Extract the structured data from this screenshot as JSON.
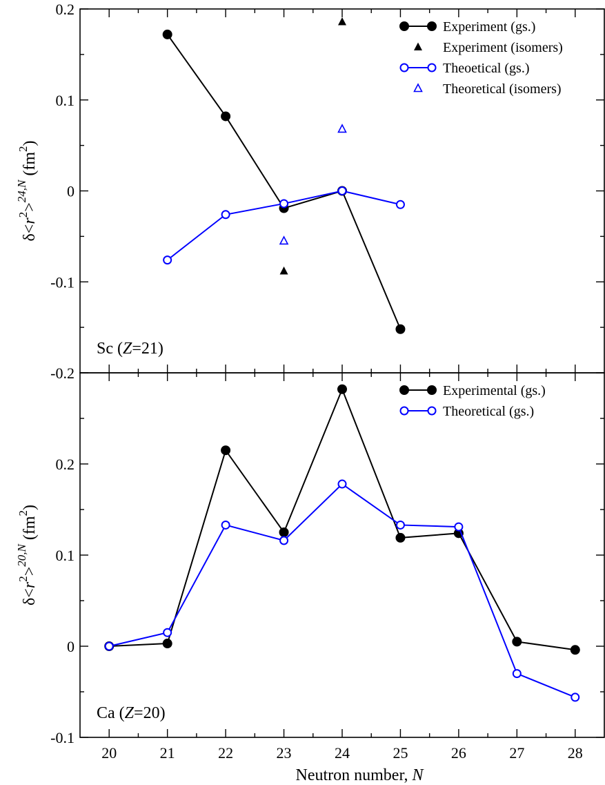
{
  "chart_data": [
    {
      "type": "line",
      "panel": "top",
      "annotation": {
        "element": "Sc",
        "zlabel": "Z",
        "zvalue": "=21"
      },
      "ylabel": {
        "delta": "δ",
        "lt": "<",
        "r": "r",
        "exp": "2",
        "gt": ">",
        "sup": "24,N",
        "unit": "(fm",
        "unitexp": "2",
        "close": ")"
      },
      "ylim": [
        -0.2,
        0.2
      ],
      "yticks": [
        {
          "v": -0.2,
          "t": "-0.2"
        },
        {
          "v": -0.1,
          "t": "-0.1"
        },
        {
          "v": 0,
          "t": "0"
        },
        {
          "v": 0.1,
          "t": "0.1"
        },
        {
          "v": 0.2,
          "t": "0.2"
        }
      ],
      "xlim": [
        19.5,
        28.5
      ],
      "series": [
        {
          "name": "Experiment (gs.)",
          "color": "#000000",
          "marker": "filled-circle",
          "line": true,
          "x": [
            21,
            22,
            23,
            24,
            25
          ],
          "y": [
            0.172,
            0.082,
            -0.019,
            0.0,
            -0.152
          ]
        },
        {
          "name": "Experiment (isomers)",
          "color": "#000000",
          "marker": "filled-triangle",
          "line": false,
          "x": [
            23,
            24
          ],
          "y": [
            -0.088,
            0.186
          ]
        },
        {
          "name": "Theoetical (gs.)",
          "color": "#0000ff",
          "marker": "open-circle",
          "line": true,
          "x": [
            21,
            22,
            23,
            24,
            25
          ],
          "y": [
            -0.076,
            -0.026,
            -0.014,
            0.0,
            -0.015
          ]
        },
        {
          "name": "Theoretical (isomers)",
          "color": "#0000ff",
          "marker": "open-triangle",
          "line": false,
          "x": [
            23,
            24
          ],
          "y": [
            -0.055,
            0.068
          ]
        }
      ]
    },
    {
      "type": "line",
      "panel": "bottom",
      "annotation": {
        "element": "Ca",
        "zlabel": "Z",
        "zvalue": "=20"
      },
      "ylabel": {
        "delta": "δ",
        "lt": "<",
        "r": "r",
        "exp": "2",
        "gt": ">",
        "sup": "20,N",
        "unit": "(fm",
        "unitexp": "2",
        "close": ")"
      },
      "ylim": [
        -0.1,
        0.3
      ],
      "yticks": [
        {
          "v": -0.1,
          "t": "-0.1"
        },
        {
          "v": 0,
          "t": "0"
        },
        {
          "v": 0.1,
          "t": "0.1"
        },
        {
          "v": 0.2,
          "t": "0.2"
        }
      ],
      "xlim": [
        19.5,
        28.5
      ],
      "xticks": [
        "20",
        "21",
        "22",
        "23",
        "24",
        "25",
        "26",
        "27",
        "28"
      ],
      "xlabel": {
        "text": "Neutron number, ",
        "var": "N"
      },
      "series": [
        {
          "name": "Experimental (gs.)",
          "color": "#000000",
          "marker": "filled-circle",
          "line": true,
          "x": [
            20,
            21,
            22,
            23,
            24,
            25,
            26,
            27,
            28
          ],
          "y": [
            0.0,
            0.003,
            0.215,
            0.125,
            0.282,
            0.119,
            0.124,
            0.005,
            -0.004
          ]
        },
        {
          "name": "Theoretical (gs.)",
          "color": "#0000ff",
          "marker": "open-circle",
          "line": true,
          "x": [
            20,
            21,
            22,
            23,
            24,
            25,
            26,
            27,
            28
          ],
          "y": [
            0.0,
            0.015,
            0.133,
            0.116,
            0.178,
            0.133,
            0.131,
            -0.03,
            -0.056
          ]
        }
      ]
    }
  ]
}
